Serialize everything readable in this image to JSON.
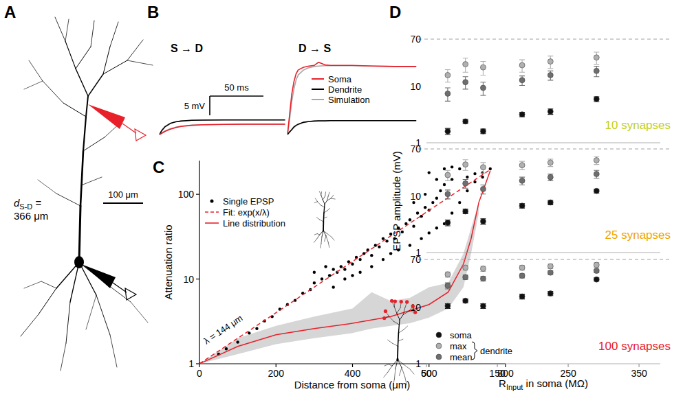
{
  "panel_labels": [
    "A",
    "B",
    "C",
    "D"
  ],
  "neuron": {
    "distance_label": {
      "text": "d",
      "sub": "S-D",
      "rest": "= 366 μm"
    },
    "scale_bar": {
      "value": 100,
      "label": "100 μm"
    }
  },
  "chart_data": [
    {
      "type": "line",
      "title": "S → D",
      "tick_labels": false,
      "x": [
        0,
        2,
        5,
        10,
        15,
        20,
        30,
        40,
        60,
        80,
        100,
        117
      ],
      "series": [
        {
          "name": "Soma",
          "color": "#e8202a",
          "values": [
            0,
            0.3,
            0.8,
            1.4,
            1.8,
            2.1,
            2.4,
            2.55,
            2.65,
            2.7,
            2.7,
            2.7
          ]
        },
        {
          "name": "Dendrite",
          "color": "#000000",
          "values": [
            0,
            1,
            2,
            2.9,
            3.3,
            3.5,
            3.7,
            3.75,
            3.8,
            3.8,
            3.8,
            3.8
          ]
        },
        {
          "name": "Simulation",
          "color": "#a8a8a8",
          "values": [
            0,
            0.4,
            0.9,
            1.5,
            1.9,
            2.2,
            2.45,
            2.55,
            2.65,
            2.7,
            2.7,
            2.7
          ]
        },
        {
          "name": "Simulation",
          "color": "#a8a8a8",
          "values": [
            0,
            1.1,
            2.1,
            2.9,
            3.3,
            3.5,
            3.7,
            3.75,
            3.8,
            3.8,
            3.8,
            3.8
          ]
        }
      ],
      "scale_bars": [
        {
          "axis": "x",
          "value": 50,
          "label": "50 ms"
        },
        {
          "axis": "y",
          "value": 5,
          "label": "5 mV"
        }
      ]
    },
    {
      "type": "line",
      "title": "D → S",
      "tick_labels": false,
      "legend": "center",
      "x": [
        0,
        2,
        4,
        6,
        8,
        10,
        15,
        20,
        25,
        29,
        35,
        40,
        60,
        80,
        100,
        120
      ],
      "series": [
        {
          "name": "Soma",
          "color": "#e8202a",
          "values": [
            0,
            5.3,
            10.5,
            13.8,
            15.8,
            16.8,
            17.5,
            17.8,
            18,
            18.8,
            18.1,
            18,
            18,
            17.8,
            17.7,
            17.7
          ]
        },
        {
          "name": "Dendrite",
          "color": "#000000",
          "values": [
            0,
            0.7,
            1.3,
            2,
            2.4,
            2.7,
            3.2,
            3.4,
            3.5,
            3.55,
            3.55,
            3.6,
            3.6,
            3.6,
            3.6,
            3.6
          ]
        },
        {
          "name": "Simulation",
          "color": "#a8a8a8",
          "values": [
            0,
            4,
            8.6,
            11.9,
            14.2,
            15.5,
            16.8,
            17.4,
            17.7,
            17.8,
            17.9,
            17.9,
            17.9,
            17.8,
            17.7,
            17.7
          ]
        },
        {
          "name": "Simulation",
          "color": "#a8a8a8",
          "values": [
            0,
            0.6,
            1.2,
            1.8,
            2.3,
            2.6,
            3.1,
            3.4,
            3.5,
            3.55,
            3.55,
            3.6,
            3.6,
            3.6,
            3.6,
            3.6
          ]
        }
      ]
    },
    {
      "type": "scatter",
      "x_label": "Distance from soma (μm)",
      "y_label": "Attenuation ratio",
      "xlim": [
        0,
        800
      ],
      "xticks": [
        0,
        200,
        400,
        600,
        800
      ],
      "ylim": [
        1,
        250
      ],
      "yticks": [
        1,
        10,
        100
      ],
      "log": "y",
      "legend": "top-left",
      "annotations": [
        {
          "text": "λ = 144 μm"
        }
      ],
      "series": [
        {
          "name": "Single EPSP",
          "type": "scatter",
          "marker": "circle",
          "color": "#000000",
          "x": [
            0,
            50,
            70,
            100,
            130,
            150,
            170,
            190,
            210,
            230,
            250,
            270,
            290,
            300,
            300,
            320,
            330,
            340,
            350,
            350,
            360,
            370,
            380,
            380,
            390,
            400,
            400,
            410,
            420,
            420,
            430,
            440,
            450,
            450,
            460,
            470,
            480,
            480,
            490,
            500,
            500,
            510,
            520,
            520,
            530,
            540,
            550,
            550,
            560,
            560,
            570,
            580,
            580,
            590,
            590,
            600,
            600,
            600,
            610,
            620,
            620,
            620,
            630,
            640,
            640,
            640,
            650,
            660,
            660,
            660,
            680,
            680,
            700,
            700,
            720,
            720,
            740,
            740,
            760
          ],
          "values": [
            1,
            1.3,
            1.5,
            1.8,
            2.3,
            2.6,
            3.2,
            3.6,
            4.4,
            5,
            5.6,
            6.8,
            7.5,
            9,
            12,
            10,
            14,
            11,
            13,
            8,
            12,
            14,
            13,
            10,
            16,
            15,
            11,
            18,
            17,
            12,
            20,
            22,
            19,
            14,
            25,
            24,
            30,
            17,
            28,
            34,
            20,
            30,
            40,
            22,
            36,
            45,
            50,
            25,
            42,
            80,
            60,
            55,
            30,
            70,
            100,
            65,
            35,
            180,
            80,
            90,
            40,
            150,
            110,
            130,
            45,
            200,
            170,
            150,
            60,
            210,
            200,
            80,
            160,
            110,
            140,
            175,
            180,
            160,
            200
          ]
        },
        {
          "name": "Fit: exp(x/λ)",
          "type": "line",
          "line_style": "dashed",
          "color": "#e8202a",
          "x": [
            0,
            200,
            400,
            600,
            760
          ],
          "values": [
            1,
            4,
            16.1,
            64.5,
            196
          ]
        },
        {
          "name": "Line distribution",
          "type": "line",
          "line_style": "solid",
          "color": "#e8202a",
          "x": [
            0,
            100,
            200,
            300,
            400,
            500,
            600,
            650,
            690,
            710,
            730,
            760
          ],
          "values": [
            1,
            1.6,
            2.2,
            2.6,
            3,
            3.6,
            5,
            7,
            15,
            30,
            80,
            190
          ]
        },
        {
          "type": "area",
          "color": "#cfcfcf",
          "x": [
            0,
            100,
            200,
            300,
            400,
            450,
            500,
            550,
            600,
            650,
            690,
            710,
            730
          ],
          "values": [
            1,
            2,
            2.8,
            3.6,
            4.5,
            7,
            5.5,
            6,
            8,
            9,
            20,
            40,
            80
          ],
          "lower": [
            1,
            1.3,
            1.7,
            2,
            2.3,
            2.6,
            2.8,
            3,
            3.5,
            4.5,
            8,
            20,
            60
          ]
        }
      ]
    },
    {
      "type": "scatter",
      "title": "10 synapses",
      "color": "#c2cf1e",
      "tick_labels": "y",
      "xlim": [
        50,
        380
      ],
      "ylim": [
        1,
        70
      ],
      "yticks": [
        1,
        10,
        70
      ],
      "log": "y",
      "hlines": [
        70
      ],
      "x": [
        80,
        105,
        130,
        185,
        225,
        290
      ],
      "series": [
        {
          "marker": "circle",
          "color": "#111111",
          "values": [
            1.6,
            2.4,
            1.6,
            3.2,
            3.6,
            6
          ],
          "errors": [
            0.2,
            0.2,
            0.15,
            0.3,
            0.4,
            0.6
          ]
        },
        {
          "marker": "circle",
          "color": "#b0b0b0",
          "values": [
            16,
            25,
            22,
            24,
            28,
            33
          ],
          "errors": [
            4,
            7,
            6,
            6,
            7,
            8
          ]
        },
        {
          "marker": "circle",
          "color": "#6e6e6e",
          "values": [
            7.5,
            12,
            9.5,
            13,
            16,
            19
          ],
          "errors": [
            2,
            3,
            2.5,
            2.5,
            3,
            4
          ]
        }
      ]
    },
    {
      "type": "scatter",
      "title": "25 synapses",
      "color": "#f0a400",
      "tick_labels": "y",
      "y_label": "EPSP amplitude (mV)",
      "xlim": [
        50,
        380
      ],
      "ylim": [
        1,
        70
      ],
      "yticks": [
        1,
        10,
        70
      ],
      "log": "y",
      "hlines": [
        70
      ],
      "x": [
        80,
        105,
        130,
        185,
        225,
        290
      ],
      "series": [
        {
          "marker": "circle",
          "color": "#111111",
          "values": [
            3.4,
            5.4,
            3.6,
            6.8,
            7.8,
            12.5
          ],
          "errors": [
            0.4,
            0.5,
            0.4,
            0.6,
            0.7,
            1
          ]
        },
        {
          "marker": "circle",
          "color": "#b0b0b0",
          "values": [
            24,
            37,
            33,
            36,
            40,
            44
          ],
          "errors": [
            5,
            8,
            7,
            6,
            6,
            7
          ]
        },
        {
          "marker": "circle",
          "color": "#6e6e6e",
          "values": [
            11,
            17,
            13.5,
            19,
            22,
            25
          ],
          "errors": [
            2,
            3,
            2.5,
            3,
            3,
            4
          ]
        }
      ]
    },
    {
      "type": "scatter",
      "title": "100 synapses",
      "color": "#e8202a",
      "tick_labels": true,
      "x_label": {
        "text": "R",
        "sub": "Input",
        "rest": " in soma (MΩ)"
      },
      "xlim": [
        50,
        380
      ],
      "xticks": [
        50,
        150,
        250,
        350
      ],
      "ylim": [
        1,
        70
      ],
      "yticks": [
        1,
        10,
        70
      ],
      "log": "y",
      "hlines": [
        70
      ],
      "legend": "bottom-left",
      "legend_group_label": "dendrite",
      "x": [
        80,
        105,
        130,
        185,
        225,
        290
      ],
      "series": [
        {
          "name": "soma",
          "marker": "circle",
          "color": "#111111",
          "values": [
            10.5,
            13,
            10.5,
            15.5,
            17.5,
            31
          ],
          "errors": [
            1,
            1,
            1,
            1.5,
            1.5,
            2
          ]
        },
        {
          "name": "max",
          "marker": "circle",
          "color": "#b0b0b0",
          "values": [
            38,
            50,
            48,
            50,
            53,
            56
          ],
          "errors": [
            4,
            5,
            5,
            5,
            5,
            5
          ]
        },
        {
          "name": "mean",
          "marker": "circle",
          "color": "#6e6e6e",
          "values": [
            24,
            34,
            32,
            36,
            41,
            44
          ],
          "errors": [
            3,
            3,
            3,
            3,
            3,
            3
          ]
        }
      ]
    }
  ]
}
